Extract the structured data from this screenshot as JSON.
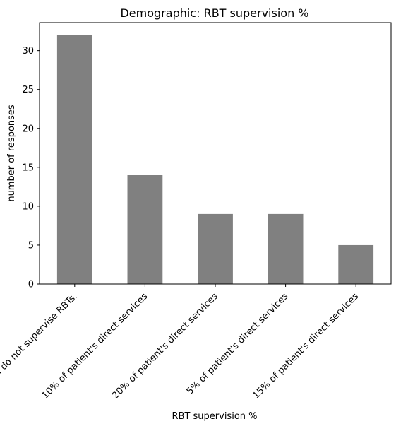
{
  "chart_data": {
    "type": "bar",
    "title": "Demographic: RBT supervision %",
    "xlabel": "RBT supervision %",
    "ylabel": "number of responses",
    "categories": [
      "I do not supervise RBTs.",
      "10% of patient's direct services",
      "20% of patient's direct services",
      "5% of patient's direct services",
      "15% of patient's direct services"
    ],
    "values": [
      32,
      14,
      9,
      9,
      5
    ],
    "ylim": [
      0,
      33.6
    ],
    "yticks": [
      0,
      5,
      10,
      15,
      20,
      25,
      30
    ],
    "bar_color": "#808080",
    "grid": false,
    "legend": "none"
  }
}
